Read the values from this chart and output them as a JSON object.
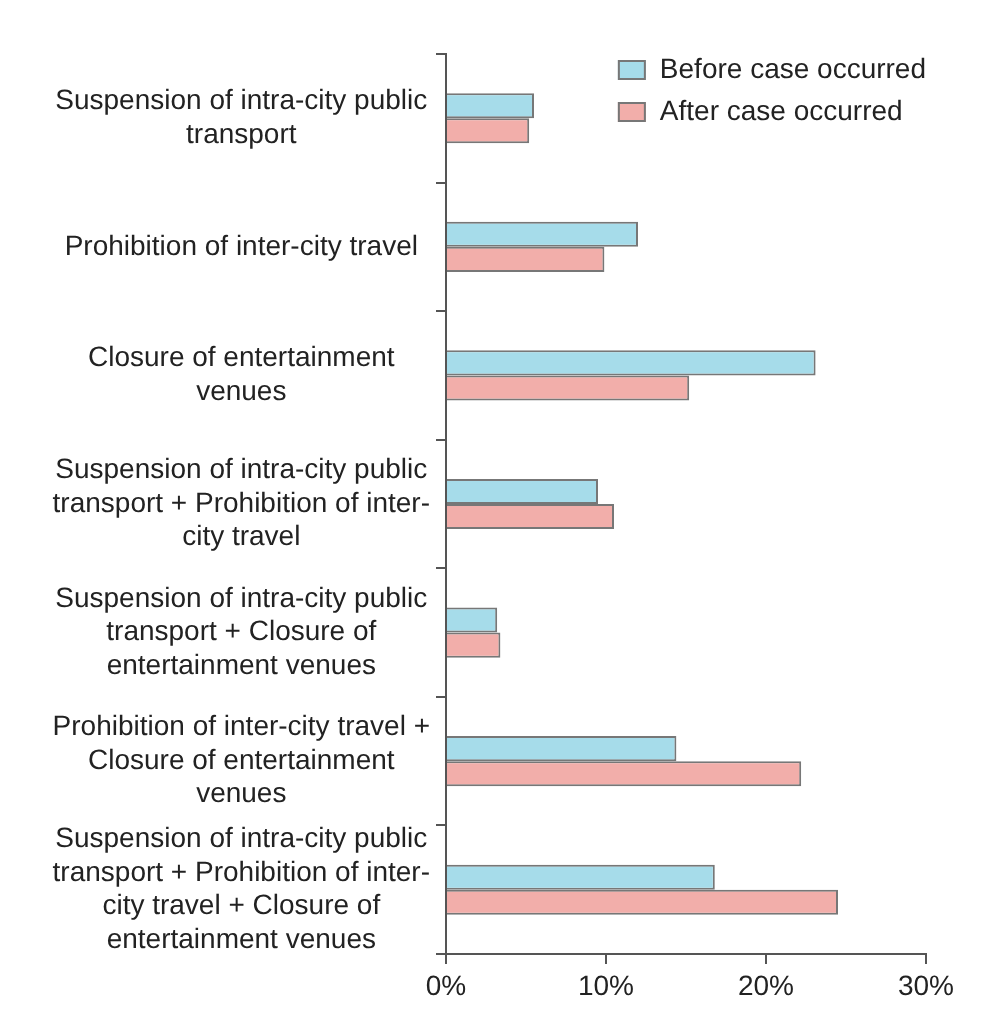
{
  "chart_data": {
    "type": "bar",
    "orientation": "horizontal",
    "categories": [
      "Suspension of intra-city public transport",
      "Prohibition of inter-city travel",
      "Closure of entertainment venues",
      "Suspension of intra-city public transport + Prohibition of inter-city travel",
      "Suspension of intra-city public transport + Closure of entertainment venues",
      "Prohibition of inter-city travel + Closure of entertainment venues",
      "Suspension of intra-city public transport + Prohibition of inter-city travel + Closure of entertainment venues"
    ],
    "series": [
      {
        "name": "Before case occurred",
        "color": "#a6dcea",
        "values": [
          5.5,
          12.0,
          23.1,
          9.5,
          3.2,
          14.4,
          16.8
        ]
      },
      {
        "name": "After case occurred",
        "color": "#f2aeaa",
        "values": [
          5.2,
          9.9,
          15.2,
          10.5,
          3.4,
          22.2,
          24.5
        ]
      }
    ],
    "xlim": [
      0,
      30
    ],
    "xticks": [
      {
        "value": 0,
        "label": "0%"
      },
      {
        "value": 10,
        "label": "10%"
      },
      {
        "value": 20,
        "label": "20%"
      },
      {
        "value": 30,
        "label": "30%"
      }
    ],
    "legend": "top right"
  }
}
